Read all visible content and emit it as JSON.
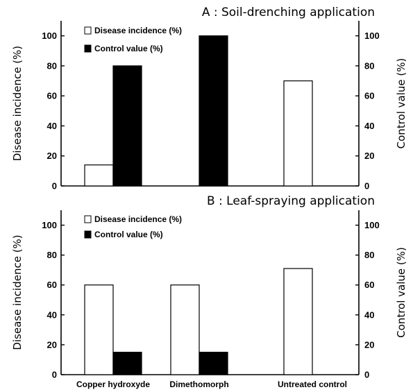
{
  "chart_data": [
    {
      "type": "bar",
      "title": "A : Soil-drenching application",
      "ylabel_left": "Disease incidence (%)",
      "ylabel_right": "Control value (%)",
      "ylim": [
        0,
        110
      ],
      "yticks": [
        0,
        20,
        40,
        60,
        80,
        100
      ],
      "categories": [
        "Copper hydroxyde",
        "Dimethomorph",
        "Untreated control"
      ],
      "show_category_labels": false,
      "series": [
        {
          "name": "Disease incidence (%)",
          "values": [
            14,
            0,
            70
          ],
          "color": "#ffffff"
        },
        {
          "name": "Control value (%)",
          "values": [
            80,
            100,
            0
          ],
          "color": "#000000"
        }
      ],
      "legend": "top-left",
      "grid": false
    },
    {
      "type": "bar",
      "title": "B : Leaf-spraying application",
      "ylabel_left": "Disease incidence (%)",
      "ylabel_right": "Control value (%)",
      "ylim": [
        0,
        110
      ],
      "yticks": [
        0,
        20,
        40,
        60,
        80,
        100
      ],
      "categories": [
        "Copper hydroxyde",
        "Dimethomorph",
        "Untreated control"
      ],
      "show_category_labels": true,
      "series": [
        {
          "name": "Disease incidence (%)",
          "values": [
            60,
            60,
            71
          ],
          "color": "#ffffff"
        },
        {
          "name": "Control value (%)",
          "values": [
            15,
            15,
            0
          ],
          "color": "#000000"
        }
      ],
      "legend": "top-left",
      "grid": false
    }
  ]
}
